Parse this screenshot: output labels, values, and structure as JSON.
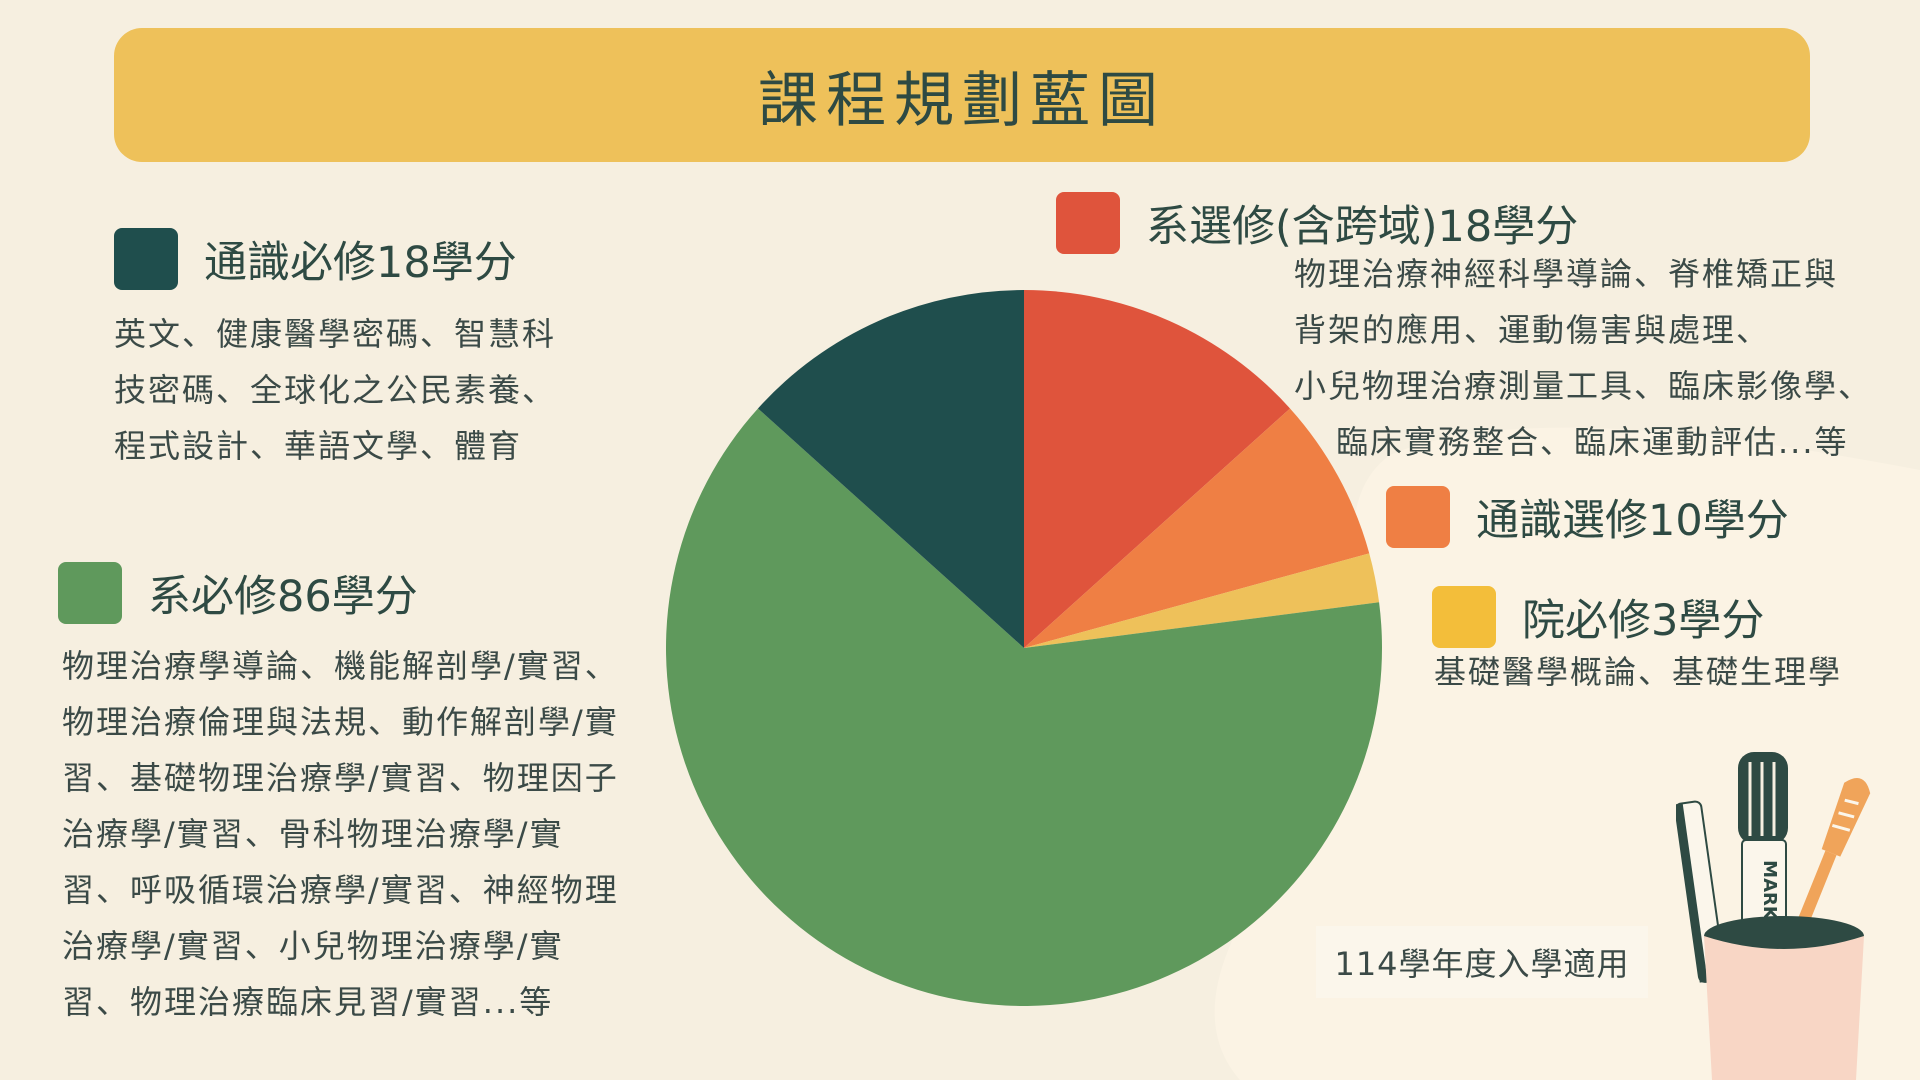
{
  "header": {
    "title": "課程規劃藍圖"
  },
  "note": {
    "text": "114學年度入學適用"
  },
  "colors": {
    "background": "#F6EFE0",
    "title_bar": "#EEC15A",
    "general_required": "#1F4E4D",
    "dept_elective": "#DF543C",
    "general_elective": "#EF7F44",
    "college_required": "#EEC15A",
    "dept_required": "#5F995C"
  },
  "categories": [
    {
      "label": "系選修(含跨域)18學分",
      "desc": [
        "物理治療神經科學導論、脊椎矯正與",
        "背架的應用、運動傷害與處理、",
        "小兒物理治療測量工具、臨床影像學、",
        "臨床實務整合、臨床運動評估...等"
      ]
    },
    {
      "label": "通識選修10學分",
      "desc": []
    },
    {
      "label": "院必修3學分",
      "desc": [
        "基礎醫學概論、基礎生理學"
      ]
    },
    {
      "label": "系必修86學分",
      "desc": [
        "物理治療學導論、機能解剖學/實習、",
        "物理治療倫理與法規、動作解剖學/實",
        "習、基礎物理治療學/實習、物理因子",
        "治療學/實習、骨科物理治療學/實",
        "習、呼吸循環治療學/實習、神經物理",
        "治療學/實習、小兒物理治療學/實",
        "習、物理治療臨床見習/實習...等"
      ]
    },
    {
      "label": "通識必修18學分",
      "desc": [
        "英文、健康醫學密碼、智慧科",
        "技密碼、全球化之公民素養、",
        "程式設計、華語文學、體育"
      ]
    }
  ],
  "chart_data": {
    "type": "pie",
    "title": "課程規劃藍圖",
    "start": "12 o'clock, clockwise",
    "legend": "around the pie",
    "slices": [
      {
        "label": "系選修(含跨域)18學分",
        "value": 18,
        "color": "#DF543C"
      },
      {
        "label": "通識選修10學分",
        "value": 10,
        "color": "#EF7F44"
      },
      {
        "label": "院必修3學分",
        "value": 3,
        "color": "#EEC15A"
      },
      {
        "label": "系必修86學分",
        "value": 86,
        "color": "#5F995C"
      },
      {
        "label": "通識必修18學分",
        "value": 18,
        "color": "#1F4E4D"
      }
    ]
  },
  "decoration": {
    "marker_text": "MARK"
  }
}
